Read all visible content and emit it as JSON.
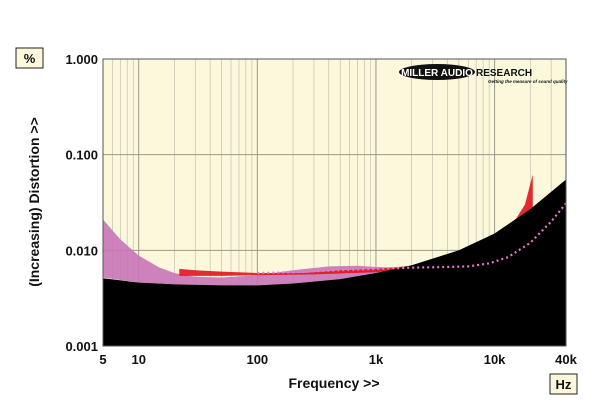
{
  "chart_data": {
    "type": "area",
    "xscale": "log",
    "yscale": "log",
    "xlim": [
      5,
      40000
    ],
    "ylim": [
      0.001,
      1.0
    ],
    "xlabel": "Frequency >>",
    "ylabel": "(Increasing) Distortion >>",
    "x_unit": "Hz",
    "y_unit": "%",
    "x_ticks": [
      {
        "value": 5,
        "label": "5"
      },
      {
        "value": 10,
        "label": "10"
      },
      {
        "value": 100,
        "label": "100"
      },
      {
        "value": 1000,
        "label": "1k"
      },
      {
        "value": 10000,
        "label": "10k"
      },
      {
        "value": 40000,
        "label": "40k"
      }
    ],
    "y_ticks": [
      {
        "value": 1.0,
        "label": "1.000"
      },
      {
        "value": 0.1,
        "label": "0.100"
      },
      {
        "value": 0.01,
        "label": "0.010"
      },
      {
        "value": 0.001,
        "label": "0.001"
      }
    ],
    "grid": true,
    "background": "#fbf8dc",
    "series": [
      {
        "color": "#c874b8",
        "style": "band",
        "upper": [
          [
            5,
            0.021
          ],
          [
            7,
            0.013
          ],
          [
            10,
            0.0088
          ],
          [
            15,
            0.0066
          ],
          [
            20,
            0.0058
          ],
          [
            30,
            0.0053
          ],
          [
            50,
            0.0052
          ],
          [
            100,
            0.0055
          ],
          [
            200,
            0.0062
          ],
          [
            400,
            0.0068
          ],
          [
            700,
            0.0069
          ],
          [
            1000,
            0.0067
          ],
          [
            1500,
            0.0066
          ]
        ],
        "lower": [
          [
            5,
            0.0052
          ],
          [
            10,
            0.0046
          ],
          [
            20,
            0.0043
          ],
          [
            50,
            0.0042
          ],
          [
            100,
            0.0043
          ],
          [
            200,
            0.0045
          ],
          [
            500,
            0.005
          ],
          [
            1000,
            0.0057
          ],
          [
            1500,
            0.0062
          ]
        ]
      },
      {
        "color": "#e0141e",
        "style": "band",
        "upper": [
          [
            22,
            0.0064
          ],
          [
            30,
            0.0062
          ],
          [
            50,
            0.006
          ],
          [
            100,
            0.0058
          ],
          [
            150,
            0.0058
          ],
          [
            250,
            0.0058
          ],
          [
            500,
            0.0062
          ],
          [
            1000,
            0.0064
          ],
          [
            2000,
            0.0069
          ],
          [
            4000,
            0.0085
          ],
          [
            7000,
            0.011
          ],
          [
            10000,
            0.014
          ],
          [
            15000,
            0.021
          ],
          [
            18000,
            0.03
          ],
          [
            21000,
            0.062
          ]
        ],
        "lower": [
          [
            22,
            0.0054
          ],
          [
            50,
            0.0054
          ],
          [
            100,
            0.0055
          ],
          [
            300,
            0.0056
          ],
          [
            1000,
            0.0059
          ],
          [
            2000,
            0.0065
          ],
          [
            4000,
            0.0078
          ],
          [
            7000,
            0.0098
          ],
          [
            10000,
            0.012
          ],
          [
            15000,
            0.017
          ],
          [
            21000,
            0.026
          ]
        ]
      },
      {
        "color": "#000000",
        "style": "fill-below",
        "values": [
          [
            5,
            0.0051
          ],
          [
            10,
            0.0046
          ],
          [
            20,
            0.0044
          ],
          [
            50,
            0.0043
          ],
          [
            100,
            0.0043
          ],
          [
            200,
            0.0045
          ],
          [
            500,
            0.005
          ],
          [
            1000,
            0.0058
          ],
          [
            2000,
            0.007
          ],
          [
            5000,
            0.01
          ],
          [
            10000,
            0.015
          ],
          [
            20000,
            0.027
          ],
          [
            40000,
            0.055
          ]
        ]
      },
      {
        "color": "#e878c8",
        "style": "dotted",
        "values": [
          [
            100,
            0.0058
          ],
          [
            200,
            0.0059
          ],
          [
            500,
            0.0062
          ],
          [
            1000,
            0.0064
          ],
          [
            2000,
            0.0066
          ],
          [
            4000,
            0.0067
          ],
          [
            6000,
            0.0068
          ],
          [
            9000,
            0.0073
          ],
          [
            13000,
            0.0085
          ],
          [
            20000,
            0.012
          ],
          [
            30000,
            0.02
          ],
          [
            40000,
            0.031
          ]
        ]
      }
    ]
  },
  "logo": {
    "name_left": "MILLER AUDIO",
    "name_right": "RESEARCH",
    "tagline": "Getting the measure of sound quality"
  }
}
